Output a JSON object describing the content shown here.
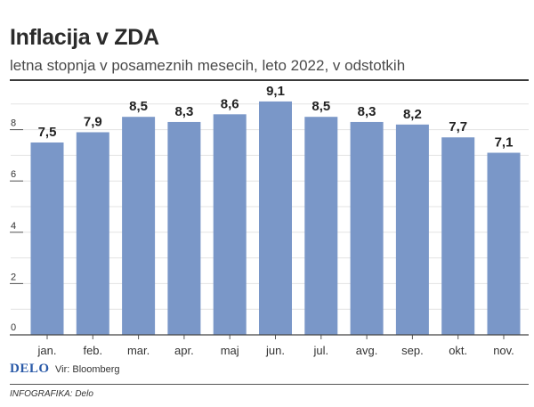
{
  "header": {
    "title": "Inflacija v ZDA",
    "subtitle": "letna stopnja v posameznih mesecih, leto 2022, v odstotkih"
  },
  "footer": {
    "brand": "DELO",
    "source": "Vir: Bloomberg",
    "credit": "INFOGRAFIKA: Delo"
  },
  "chart_data": {
    "type": "bar",
    "title": "Inflacija v ZDA",
    "subtitle": "letna stopnja v posameznih mesecih, leto 2022, v odstotkih",
    "categories": [
      "jan.",
      "feb.",
      "mar.",
      "apr.",
      "maj",
      "jun.",
      "jul.",
      "avg.",
      "sep.",
      "okt.",
      "nov."
    ],
    "values": [
      7.5,
      7.9,
      8.5,
      8.3,
      8.6,
      9.1,
      8.5,
      8.3,
      8.2,
      7.7,
      7.1
    ],
    "value_labels": [
      "7,5",
      "7,9",
      "8,5",
      "8,3",
      "8,6",
      "9,1",
      "8,5",
      "8,3",
      "8,2",
      "7,7",
      "7,1"
    ],
    "yticks": [
      0,
      2,
      4,
      6,
      8
    ],
    "ylim": [
      0,
      9.5
    ],
    "xlabel": "",
    "ylabel": "",
    "grid": true,
    "bar_color": "#7a97c8"
  }
}
